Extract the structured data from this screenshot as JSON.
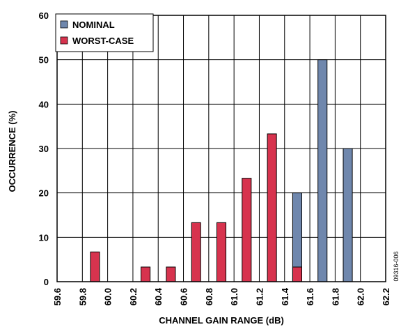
{
  "chart_data": {
    "type": "bar",
    "xlabel": "CHANNEL GAIN RANGE (dB)",
    "ylabel": "OCCURRENCE (%)",
    "xlim": [
      59.6,
      62.2
    ],
    "ylim": [
      0,
      60
    ],
    "x_ticks": [
      "59.6",
      "59.8",
      "60.0",
      "60.2",
      "60.4",
      "60.6",
      "60.8",
      "61.0",
      "61.2",
      "61.4",
      "61.6",
      "61.8",
      "62.0",
      "62.2"
    ],
    "y_ticks": [
      "0",
      "10",
      "20",
      "30",
      "40",
      "50",
      "60"
    ],
    "grid": true,
    "legend_position": "top-left",
    "series": [
      {
        "name": "NOMINAL",
        "color": "#6f87ad",
        "x": [
          61.5,
          61.7,
          61.9
        ],
        "values": [
          20,
          50,
          30
        ]
      },
      {
        "name": "WORST-CASE",
        "color": "#d7334e",
        "x": [
          59.9,
          60.3,
          60.5,
          60.7,
          60.9,
          61.1,
          61.3,
          61.5
        ],
        "values": [
          6.7,
          3.3,
          3.3,
          13.3,
          13.3,
          23.3,
          33.3,
          3.3
        ]
      }
    ]
  },
  "figure_id": "09316-006"
}
